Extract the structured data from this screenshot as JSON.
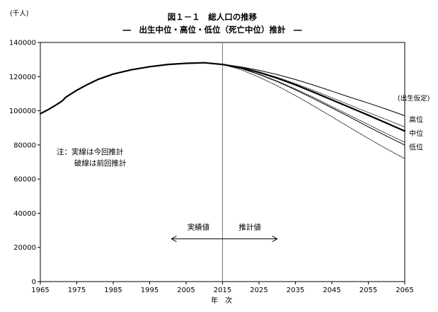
{
  "chart_data": {
    "type": "line",
    "title": "図１－１　総人口の推移",
    "subtitle": "―　出生中位・高位・低位（死亡中位）推計　―",
    "ylabel": "(千人)",
    "xlabel": "年　次",
    "xlim": [
      1965,
      2065
    ],
    "ylim": [
      0,
      140000
    ],
    "xticks": [
      "1965",
      "1975",
      "1985",
      "1995",
      "2005",
      "2015",
      "2025",
      "2035",
      "2045",
      "2055",
      "2065"
    ],
    "yticks": [
      "0",
      "20000",
      "40000",
      "60000",
      "80000",
      "100000",
      "120000",
      "140000"
    ],
    "series": [
      {
        "name": "実績値",
        "style": "thick",
        "x": [
          1965,
          1967,
          1969,
          1971,
          1972,
          1975,
          1978,
          1981,
          1985,
          1990,
          1995,
          2000,
          2005,
          2010,
          2015
        ],
        "y": [
          98300,
          100500,
          103000,
          105700,
          108000,
          112000,
          115500,
          118500,
          121500,
          124000,
          125800,
          127100,
          127800,
          128100,
          127100
        ]
      },
      {
        "name": "中位（今回推計）",
        "style": "thick",
        "x": [
          2015,
          2020,
          2025,
          2030,
          2035,
          2040,
          2045,
          2050,
          2055,
          2060,
          2065
        ],
        "y": [
          127100,
          125300,
          122500,
          119100,
          115200,
          110900,
          106400,
          101900,
          97400,
          92800,
          88100
        ]
      },
      {
        "name": "高位（今回推計）",
        "style": "thin",
        "x": [
          2015,
          2020,
          2025,
          2030,
          2035,
          2040,
          2045,
          2050,
          2055,
          2060,
          2065
        ],
        "y": [
          127100,
          125700,
          123700,
          121200,
          118300,
          115000,
          111500,
          107900,
          104500,
          100900,
          97100
        ]
      },
      {
        "name": "低位（今回推計）",
        "style": "thin",
        "x": [
          2015,
          2020,
          2025,
          2030,
          2035,
          2040,
          2045,
          2050,
          2055,
          2060,
          2065
        ],
        "y": [
          127100,
          124800,
          121300,
          117100,
          112300,
          107100,
          101700,
          96200,
          90600,
          85200,
          79900
        ]
      },
      {
        "name": "高位（前回推計）",
        "style": "dotted",
        "x": [
          2015,
          2020,
          2025,
          2030,
          2035,
          2040,
          2045,
          2050,
          2055,
          2060,
          2065
        ],
        "y": [
          127100,
          125400,
          122800,
          119600,
          115900,
          111900,
          107600,
          103300,
          99000,
          94800,
          90500
        ]
      },
      {
        "name": "中位（前回推計）",
        "style": "dotted",
        "x": [
          2015,
          2020,
          2025,
          2030,
          2035,
          2040,
          2045,
          2050,
          2055,
          2060,
          2065
        ],
        "y": [
          127100,
          124800,
          121500,
          117400,
          112800,
          107800,
          102500,
          97200,
          91900,
          86600,
          81500
        ]
      },
      {
        "name": "低位（前回推計）",
        "style": "dotted",
        "x": [
          2015,
          2020,
          2025,
          2030,
          2035,
          2040,
          2045,
          2050,
          2055,
          2060,
          2065
        ],
        "y": [
          127100,
          124100,
          119700,
          114600,
          108900,
          102800,
          96500,
          90100,
          83800,
          77700,
          72000
        ]
      }
    ],
    "vline_x": 2015,
    "legend_heading": "(出生仮定)",
    "legend_labels": [
      {
        "text": "高位",
        "value": 95000
      },
      {
        "text": "中位",
        "value": 87000
      },
      {
        "text": "低位",
        "value": 79000
      }
    ],
    "note_line1": "注：実線は今回推計",
    "note_line2": "破線は前回推計",
    "annotation_actual": "実績値",
    "annotation_projection": "推計値",
    "arrow": {
      "from_x": 2001,
      "to_x": 2030,
      "y": 25000
    }
  }
}
